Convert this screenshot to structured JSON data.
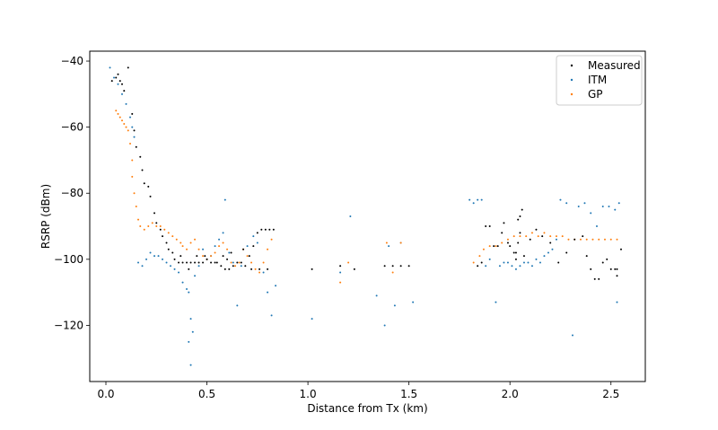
{
  "chart_data": {
    "type": "scatter",
    "title": "",
    "xlabel": "Distance from Tx (km)",
    "ylabel": "RSRP (dBm)",
    "xlim": [
      -0.08,
      2.67
    ],
    "ylim": [
      -137,
      -37
    ],
    "xticks": [
      0.0,
      0.5,
      1.0,
      1.5,
      2.0,
      2.5
    ],
    "xtick_labels": [
      "0.0",
      "0.5",
      "1.0",
      "1.5",
      "2.0",
      "2.5"
    ],
    "yticks": [
      -40,
      -60,
      -80,
      -100,
      -120
    ],
    "ytick_labels": [
      "−40",
      "−60",
      "−80",
      "−100",
      "−120"
    ],
    "legend_position": "top-right",
    "series": [
      {
        "name": "Measured",
        "color": "#000000",
        "points": [
          [
            0.03,
            -46
          ],
          [
            0.05,
            -45
          ],
          [
            0.06,
            -44
          ],
          [
            0.07,
            -46
          ],
          [
            0.08,
            -47
          ],
          [
            0.09,
            -49
          ],
          [
            0.11,
            -42
          ],
          [
            0.13,
            -56
          ],
          [
            0.14,
            -61
          ],
          [
            0.15,
            -66
          ],
          [
            0.17,
            -69
          ],
          [
            0.18,
            -73
          ],
          [
            0.19,
            -77
          ],
          [
            0.21,
            -78
          ],
          [
            0.22,
            -81
          ],
          [
            0.24,
            -86
          ],
          [
            0.25,
            -89
          ],
          [
            0.27,
            -91
          ],
          [
            0.28,
            -93
          ],
          [
            0.3,
            -95
          ],
          [
            0.31,
            -97
          ],
          [
            0.33,
            -98
          ],
          [
            0.34,
            -100
          ],
          [
            0.36,
            -101
          ],
          [
            0.38,
            -101
          ],
          [
            0.4,
            -101
          ],
          [
            0.42,
            -101
          ],
          [
            0.44,
            -101
          ],
          [
            0.46,
            -101
          ],
          [
            0.48,
            -101
          ],
          [
            0.5,
            -100
          ],
          [
            0.52,
            -101
          ],
          [
            0.55,
            -101
          ],
          [
            0.57,
            -102
          ],
          [
            0.59,
            -103
          ],
          [
            0.61,
            -103
          ],
          [
            0.63,
            -102
          ],
          [
            0.65,
            -101
          ],
          [
            0.67,
            -101
          ],
          [
            0.69,
            -102
          ],
          [
            0.71,
            -99
          ],
          [
            0.73,
            -96
          ],
          [
            0.75,
            -92
          ],
          [
            0.77,
            -91
          ],
          [
            0.79,
            -91
          ],
          [
            0.81,
            -91
          ],
          [
            0.83,
            -91
          ],
          [
            0.6,
            -100
          ],
          [
            0.58,
            -99
          ],
          [
            0.54,
            -101
          ],
          [
            0.37,
            -99
          ],
          [
            0.41,
            -103
          ],
          [
            0.45,
            -99
          ],
          [
            0.49,
            -99
          ],
          [
            0.62,
            -98
          ],
          [
            0.68,
            -97
          ],
          [
            0.72,
            -103
          ],
          [
            0.76,
            -103
          ],
          [
            0.8,
            -103
          ],
          [
            1.02,
            -103
          ],
          [
            1.16,
            -102
          ],
          [
            1.23,
            -103
          ],
          [
            1.38,
            -102
          ],
          [
            1.42,
            -102
          ],
          [
            1.46,
            -102
          ],
          [
            1.5,
            -102
          ],
          [
            1.84,
            -102
          ],
          [
            1.86,
            -101
          ],
          [
            1.88,
            -90
          ],
          [
            1.9,
            -90
          ],
          [
            1.92,
            -96
          ],
          [
            1.94,
            -96
          ],
          [
            1.96,
            -92
          ],
          [
            1.97,
            -89
          ],
          [
            1.99,
            -95
          ],
          [
            2.0,
            -96
          ],
          [
            2.02,
            -98
          ],
          [
            2.03,
            -100
          ],
          [
            2.04,
            -88
          ],
          [
            2.05,
            -87
          ],
          [
            2.06,
            -85
          ],
          [
            2.05,
            -92
          ],
          [
            2.04,
            -95
          ],
          [
            2.03,
            -98
          ],
          [
            2.07,
            -99
          ],
          [
            2.1,
            -94
          ],
          [
            2.13,
            -91
          ],
          [
            2.16,
            -93
          ],
          [
            2.2,
            -95
          ],
          [
            2.24,
            -101
          ],
          [
            2.28,
            -98
          ],
          [
            2.32,
            -94
          ],
          [
            2.36,
            -93
          ],
          [
            2.38,
            -99
          ],
          [
            2.4,
            -103
          ],
          [
            2.42,
            -106
          ],
          [
            2.44,
            -106
          ],
          [
            2.46,
            -101
          ],
          [
            2.48,
            -100
          ],
          [
            2.5,
            -103
          ],
          [
            2.52,
            -103
          ],
          [
            2.53,
            -105
          ],
          [
            2.55,
            -97
          ],
          [
            2.53,
            -103
          ]
        ]
      },
      {
        "name": "ITM",
        "color": "#1f77b4",
        "points": [
          [
            0.02,
            -42
          ],
          [
            0.04,
            -45
          ],
          [
            0.06,
            -47
          ],
          [
            0.08,
            -50
          ],
          [
            0.1,
            -53
          ],
          [
            0.12,
            -57
          ],
          [
            0.13,
            -60
          ],
          [
            0.14,
            -63
          ],
          [
            0.16,
            -101
          ],
          [
            0.18,
            -102
          ],
          [
            0.2,
            -100
          ],
          [
            0.22,
            -98
          ],
          [
            0.24,
            -99
          ],
          [
            0.26,
            -99
          ],
          [
            0.28,
            -100
          ],
          [
            0.3,
            -101
          ],
          [
            0.32,
            -102
          ],
          [
            0.34,
            -103
          ],
          [
            0.36,
            -104
          ],
          [
            0.38,
            -107
          ],
          [
            0.4,
            -109
          ],
          [
            0.41,
            -110
          ],
          [
            0.42,
            -118
          ],
          [
            0.43,
            -122
          ],
          [
            0.41,
            -125
          ],
          [
            0.42,
            -132
          ],
          [
            0.44,
            -105
          ],
          [
            0.46,
            -102
          ],
          [
            0.48,
            -97
          ],
          [
            0.5,
            -100
          ],
          [
            0.52,
            -99
          ],
          [
            0.54,
            -96
          ],
          [
            0.56,
            -94
          ],
          [
            0.58,
            -92
          ],
          [
            0.59,
            -82
          ],
          [
            0.61,
            -98
          ],
          [
            0.63,
            -101
          ],
          [
            0.65,
            -114
          ],
          [
            0.67,
            -102
          ],
          [
            0.7,
            -96
          ],
          [
            0.73,
            -93
          ],
          [
            0.75,
            -95
          ],
          [
            0.78,
            -104
          ],
          [
            0.8,
            -110
          ],
          [
            0.82,
            -117
          ],
          [
            0.84,
            -108
          ],
          [
            1.02,
            -118
          ],
          [
            1.16,
            -104
          ],
          [
            1.21,
            -87
          ],
          [
            1.34,
            -111
          ],
          [
            1.38,
            -120
          ],
          [
            1.4,
            -96
          ],
          [
            1.43,
            -114
          ],
          [
            1.46,
            -95
          ],
          [
            1.52,
            -113
          ],
          [
            1.8,
            -82
          ],
          [
            1.82,
            -83
          ],
          [
            1.84,
            -82
          ],
          [
            1.86,
            -82
          ],
          [
            1.88,
            -102
          ],
          [
            1.9,
            -100
          ],
          [
            1.93,
            -113
          ],
          [
            1.95,
            -102
          ],
          [
            1.97,
            -101
          ],
          [
            1.99,
            -101
          ],
          [
            2.01,
            -102
          ],
          [
            2.03,
            -103
          ],
          [
            2.05,
            -102
          ],
          [
            2.07,
            -101
          ],
          [
            2.09,
            -101
          ],
          [
            2.11,
            -102
          ],
          [
            2.13,
            -100
          ],
          [
            2.15,
            -101
          ],
          [
            2.17,
            -99
          ],
          [
            2.19,
            -98
          ],
          [
            2.21,
            -97
          ],
          [
            2.23,
            -94
          ],
          [
            2.25,
            -82
          ],
          [
            2.28,
            -83
          ],
          [
            2.31,
            -123
          ],
          [
            2.34,
            -84
          ],
          [
            2.37,
            -83
          ],
          [
            2.4,
            -86
          ],
          [
            2.43,
            -90
          ],
          [
            2.46,
            -84
          ],
          [
            2.49,
            -84
          ],
          [
            2.52,
            -85
          ],
          [
            2.53,
            -113
          ],
          [
            2.54,
            -83
          ]
        ]
      },
      {
        "name": "GP",
        "color": "#ff7f0e",
        "points": [
          [
            0.05,
            -55
          ],
          [
            0.06,
            -56
          ],
          [
            0.07,
            -57
          ],
          [
            0.08,
            -58
          ],
          [
            0.09,
            -59
          ],
          [
            0.1,
            -60
          ],
          [
            0.11,
            -61
          ],
          [
            0.12,
            -65
          ],
          [
            0.13,
            -70
          ],
          [
            0.13,
            -75
          ],
          [
            0.14,
            -80
          ],
          [
            0.15,
            -84
          ],
          [
            0.16,
            -88
          ],
          [
            0.17,
            -90
          ],
          [
            0.19,
            -91
          ],
          [
            0.21,
            -90
          ],
          [
            0.23,
            -89
          ],
          [
            0.25,
            -90
          ],
          [
            0.27,
            -90
          ],
          [
            0.29,
            -91
          ],
          [
            0.31,
            -92
          ],
          [
            0.33,
            -93
          ],
          [
            0.35,
            -94
          ],
          [
            0.37,
            -95
          ],
          [
            0.38,
            -96
          ],
          [
            0.4,
            -97
          ],
          [
            0.42,
            -95
          ],
          [
            0.44,
            -94
          ],
          [
            0.46,
            -97
          ],
          [
            0.48,
            -99
          ],
          [
            0.5,
            -100
          ],
          [
            0.52,
            -99
          ],
          [
            0.54,
            -98
          ],
          [
            0.56,
            -96
          ],
          [
            0.58,
            -95
          ],
          [
            0.6,
            -97
          ],
          [
            0.62,
            -101
          ],
          [
            0.64,
            -102
          ],
          [
            0.66,
            -101
          ],
          [
            0.68,
            -97
          ],
          [
            0.7,
            -99
          ],
          [
            0.72,
            -101
          ],
          [
            0.74,
            -103
          ],
          [
            0.76,
            -104
          ],
          [
            0.78,
            -101
          ],
          [
            0.8,
            -97
          ],
          [
            0.82,
            -94
          ],
          [
            1.16,
            -107
          ],
          [
            1.2,
            -101
          ],
          [
            1.39,
            -95
          ],
          [
            1.42,
            -104
          ],
          [
            1.46,
            -95
          ],
          [
            1.82,
            -101
          ],
          [
            1.85,
            -99
          ],
          [
            1.87,
            -97
          ],
          [
            1.9,
            -96
          ],
          [
            1.93,
            -96
          ],
          [
            1.96,
            -95
          ],
          [
            1.99,
            -94
          ],
          [
            2.02,
            -93
          ],
          [
            2.05,
            -93
          ],
          [
            2.08,
            -93
          ],
          [
            2.11,
            -92
          ],
          [
            2.14,
            -93
          ],
          [
            2.17,
            -92
          ],
          [
            2.2,
            -93
          ],
          [
            2.23,
            -93
          ],
          [
            2.26,
            -93
          ],
          [
            2.29,
            -94
          ],
          [
            2.32,
            -94
          ],
          [
            2.35,
            -94
          ],
          [
            2.38,
            -94
          ],
          [
            2.41,
            -94
          ],
          [
            2.44,
            -94
          ],
          [
            2.47,
            -94
          ],
          [
            2.5,
            -94
          ],
          [
            2.53,
            -94
          ]
        ]
      }
    ]
  }
}
